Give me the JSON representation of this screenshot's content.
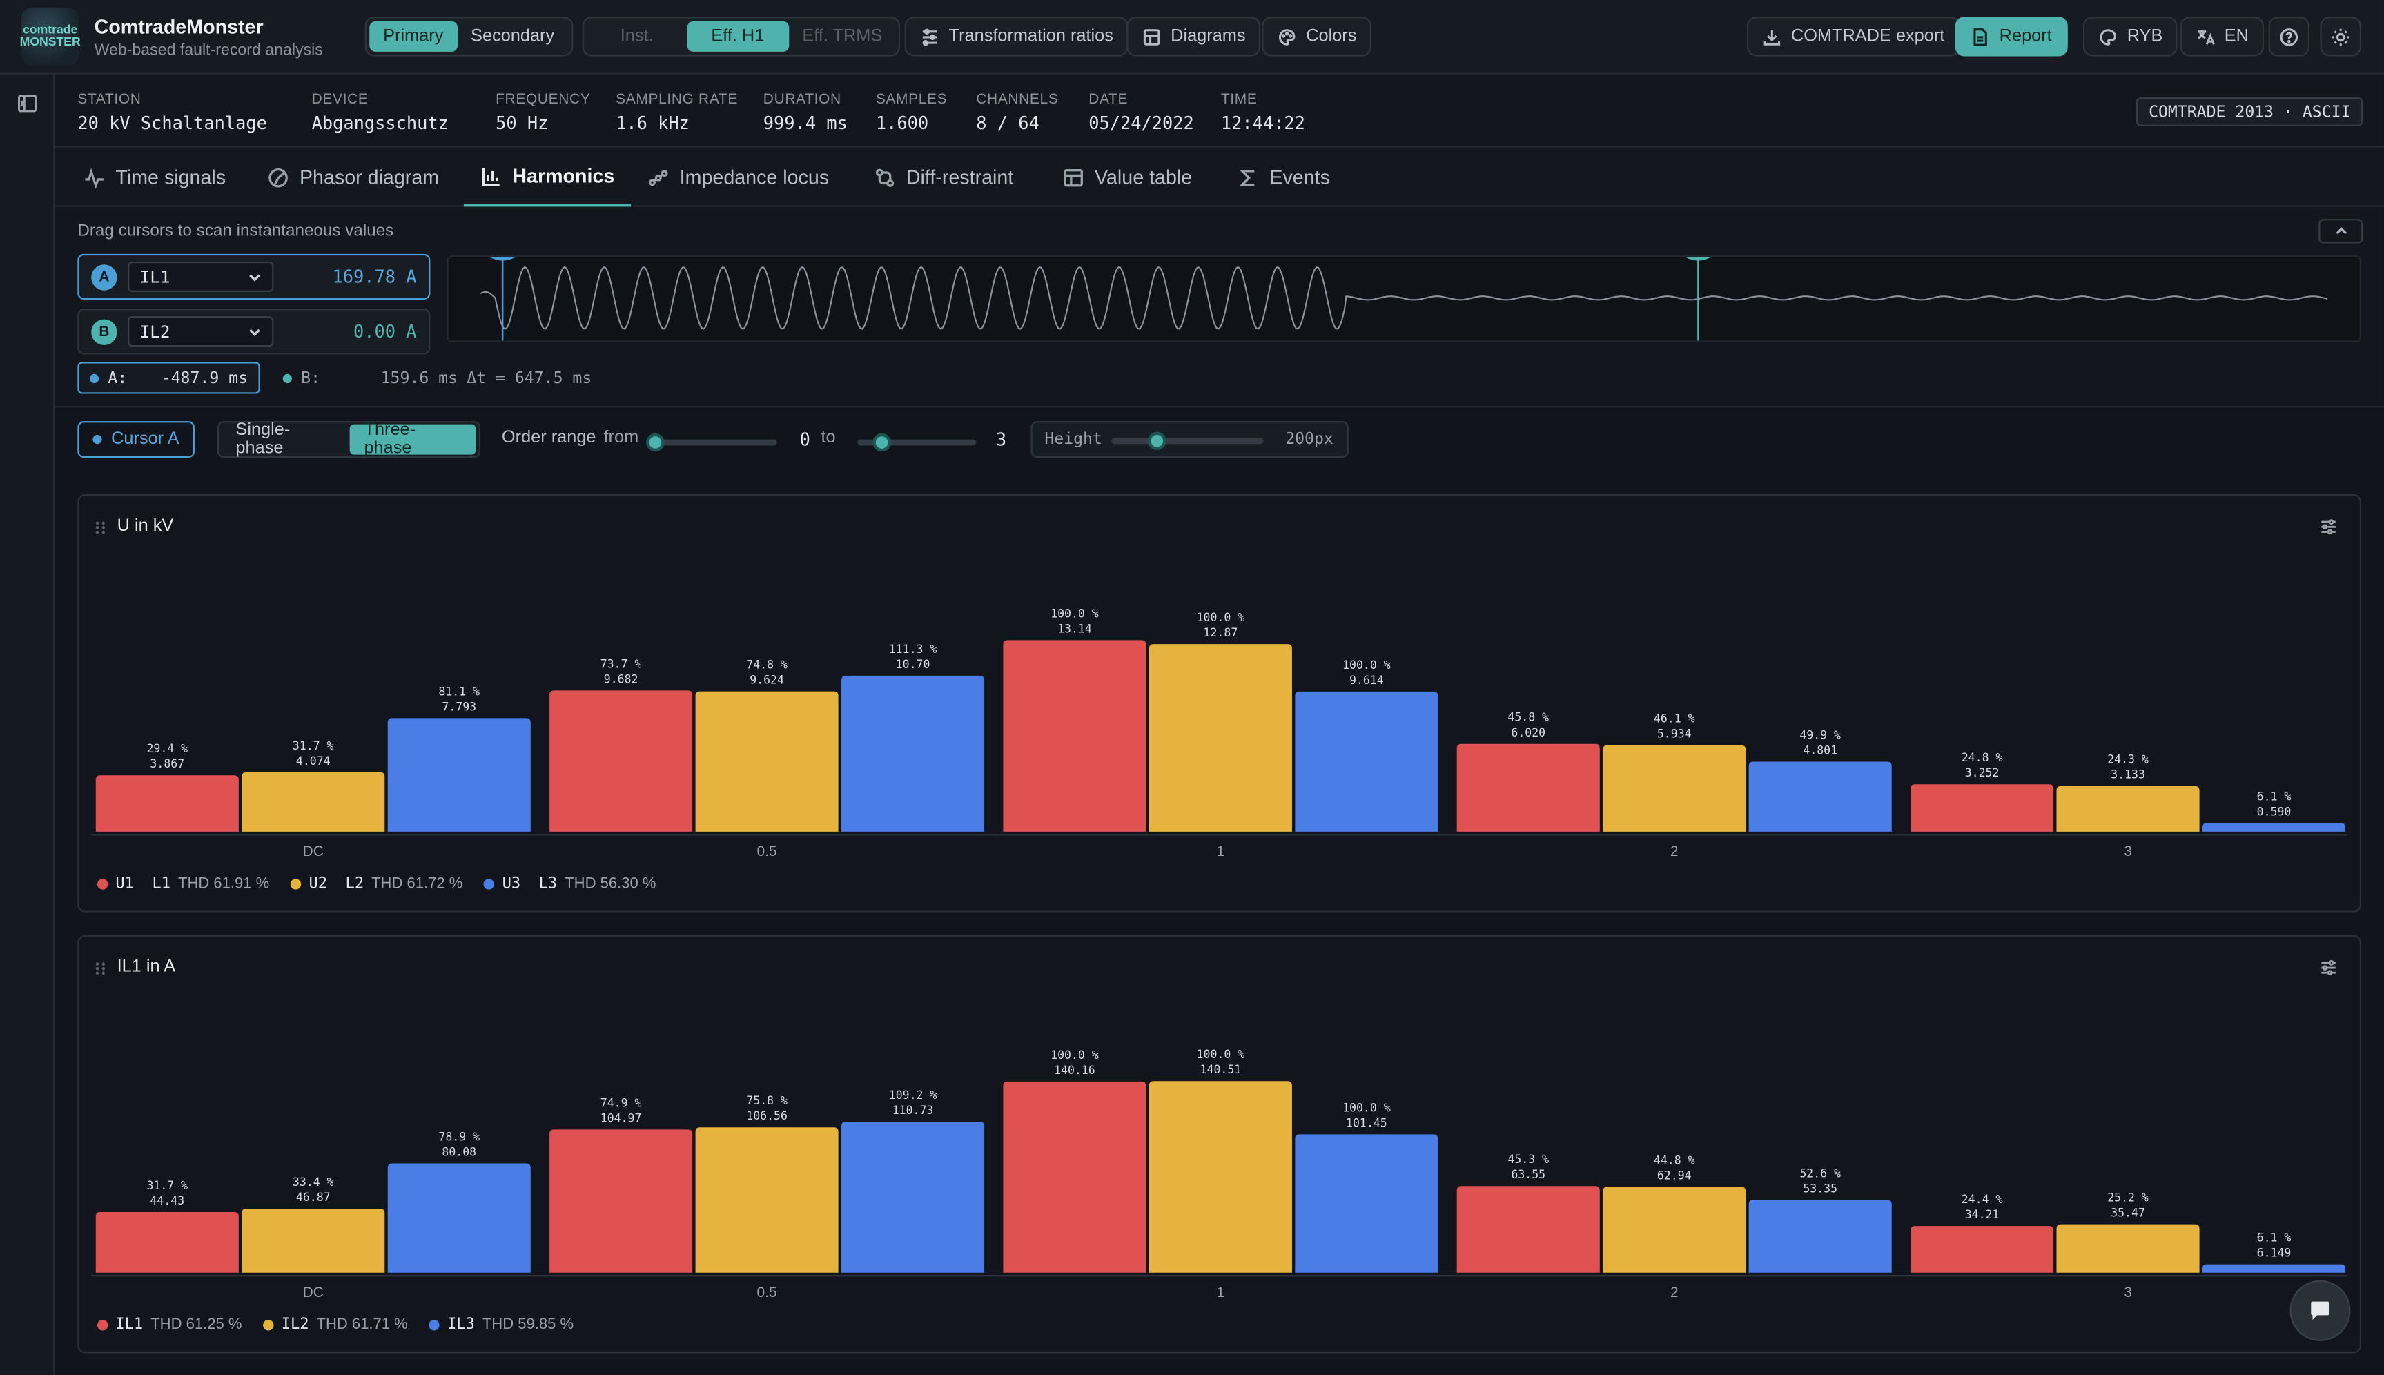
{
  "app": {
    "title": "ComtradeMonster",
    "subtitle": "Web-based fault-record analysis",
    "logo_text": "comtrade MONSTER"
  },
  "toolbar": {
    "values_mode": {
      "primary": "Primary",
      "secondary": "Secondary",
      "selected": "Primary"
    },
    "calc_mode": {
      "inst": "Inst.",
      "eff_h1": "Eff. H1",
      "eff_trms": "Eff. TRMS",
      "selected": "Eff. H1"
    },
    "transformation_ratios": "Transformation ratios",
    "diagrams": "Diagrams",
    "colors": "Colors",
    "export": "COMTRADE export",
    "report": "Report",
    "phase_colors": "RYB",
    "language": "EN"
  },
  "record": {
    "station": {
      "label": "STATION",
      "value": "20 kV Schaltanlage"
    },
    "device": {
      "label": "DEVICE",
      "value": "Abgangsschutz"
    },
    "frequency": {
      "label": "FREQUENCY",
      "value": "50 Hz"
    },
    "sampling_rate": {
      "label": "SAMPLING RATE",
      "value": "1.6 kHz"
    },
    "duration": {
      "label": "DURATION",
      "value": "999.4 ms"
    },
    "samples": {
      "label": "SAMPLES",
      "value": "1.600"
    },
    "channels": {
      "label": "CHANNELS",
      "value": "8 / 64"
    },
    "date": {
      "label": "DATE",
      "value": "05/24/2022"
    },
    "time": {
      "label": "TIME",
      "value": "12:44:22"
    },
    "format": "COMTRADE 2013 · ASCII"
  },
  "tabs": [
    {
      "label": "Time signals",
      "icon": "activity-icon"
    },
    {
      "label": "Phasor diagram",
      "icon": "phasor-icon"
    },
    {
      "label": "Harmonics",
      "icon": "bar-chart-icon",
      "active": true
    },
    {
      "label": "Impedance locus",
      "icon": "locus-icon"
    },
    {
      "label": "Diff-restraint",
      "icon": "diff-icon"
    },
    {
      "label": "Value table",
      "icon": "table-icon"
    },
    {
      "label": "Events",
      "icon": "sigma-icon"
    }
  ],
  "cursors": {
    "hint": "Drag cursors to scan instantaneous values",
    "a": {
      "badge": "A",
      "channel": "IL1",
      "value": "169.78 A",
      "color": "#4a9fd6"
    },
    "b": {
      "badge": "B",
      "channel": "IL2",
      "value": "0.00 A",
      "color": "#4fb3ad"
    },
    "time_a_label": "A:",
    "time_a": "-487.9 ms",
    "time_b_label": "B:",
    "time_b": "159.6 ms",
    "delta": "Δt = 647.5 ms"
  },
  "controls": {
    "cursor_source": "Cursor A",
    "single_phase": "Single-phase",
    "three_phase": "Three-phase",
    "phase_selected": "Three-phase",
    "order_range_label": "Order range",
    "from_label": "from",
    "from_value": "0",
    "to_label": "to",
    "to_value": "3",
    "height_label": "Height",
    "height_value": "200px",
    "from_fraction": 0.0,
    "to_fraction": 0.2,
    "height_fraction": 0.3
  },
  "chart_data": [
    {
      "type": "bar",
      "title": "U in kV",
      "categories": [
        "DC",
        "0.5",
        "1",
        "2",
        "3"
      ],
      "series": [
        {
          "name": "U1  L1",
          "thd": "THD 61.91 %",
          "color": "#e05252",
          "values": [
            3.867,
            9.682,
            13.14,
            6.02,
            3.252
          ],
          "percent": [
            "29.4 %",
            "73.7 %",
            "100.0 %",
            "45.8 %",
            "24.8 %"
          ],
          "labels": [
            "3.867",
            "9.682",
            "13.14",
            "6.020",
            "3.252"
          ]
        },
        {
          "name": "U2  L2",
          "thd": "THD 61.72 %",
          "color": "#e6b43c",
          "values": [
            4.074,
            9.624,
            12.87,
            5.934,
            3.133
          ],
          "percent": [
            "31.7 %",
            "74.8 %",
            "100.0 %",
            "46.1 %",
            "24.3 %"
          ],
          "labels": [
            "4.074",
            "9.624",
            "12.87",
            "5.934",
            "3.133"
          ]
        },
        {
          "name": "U3  L3",
          "thd": "THD 56.30 %",
          "color": "#4a7ee6",
          "values": [
            7.793,
            10.7,
            9.614,
            4.801,
            0.59
          ],
          "percent": [
            "81.1 %",
            "111.3 %",
            "100.0 %",
            "49.9 %",
            "6.1 %"
          ],
          "labels": [
            "7.793",
            "10.70",
            "9.614",
            "4.801",
            "0.590"
          ]
        }
      ],
      "ymax": 13.14
    },
    {
      "type": "bar",
      "title": "IL1 in A",
      "categories": [
        "DC",
        "0.5",
        "1",
        "2",
        "3"
      ],
      "series": [
        {
          "name": "IL1",
          "thd": "THD 61.25 %",
          "color": "#e05252",
          "values": [
            44.43,
            104.97,
            140.16,
            63.55,
            34.21
          ],
          "percent": [
            "31.7 %",
            "74.9 %",
            "100.0 %",
            "45.3 %",
            "24.4 %"
          ],
          "labels": [
            "44.43",
            "104.97",
            "140.16",
            "63.55",
            "34.21"
          ]
        },
        {
          "name": "IL2",
          "thd": "THD 61.71 %",
          "color": "#e6b43c",
          "values": [
            46.87,
            106.56,
            140.51,
            62.94,
            35.47
          ],
          "percent": [
            "33.4 %",
            "75.8 %",
            "100.0 %",
            "44.8 %",
            "25.2 %"
          ],
          "labels": [
            "46.87",
            "106.56",
            "140.51",
            "62.94",
            "35.47"
          ]
        },
        {
          "name": "IL3",
          "thd": "THD 59.85 %",
          "color": "#4a7ee6",
          "values": [
            80.08,
            110.73,
            101.45,
            53.35,
            6.149
          ],
          "percent": [
            "78.9 %",
            "109.2 %",
            "100.0 %",
            "52.6 %",
            "6.1 %"
          ],
          "labels": [
            "80.08",
            "110.73",
            "101.45",
            "53.35",
            "6.149"
          ]
        }
      ],
      "ymax": 140.51
    }
  ]
}
